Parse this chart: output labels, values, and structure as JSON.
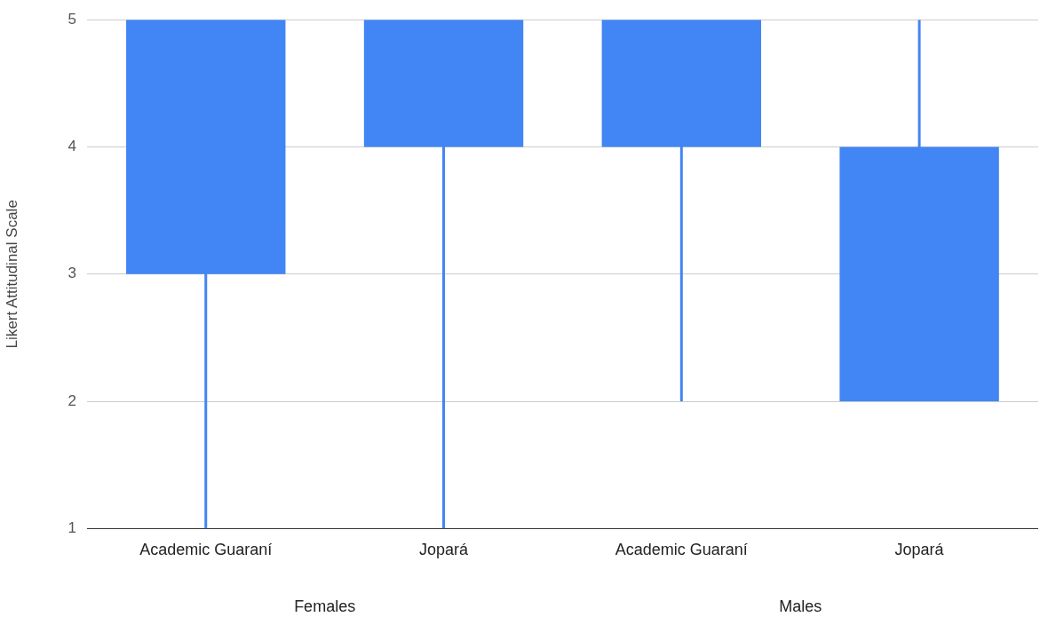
{
  "chart_data": {
    "type": "candlestick",
    "ylabel": "Likert Attitudinal Scale",
    "categories": [
      "Academic Guaraní",
      "Jopará",
      "Academic Guaraní",
      "Jopará"
    ],
    "ohlc": [
      [
        3,
        5,
        1,
        5
      ],
      [
        4,
        5,
        1,
        5
      ],
      [
        4,
        5,
        2,
        5
      ],
      [
        2,
        5,
        2,
        4
      ]
    ],
    "color": "#4285f4",
    "ylim": [
      1,
      5
    ],
    "yticks": [
      1,
      2,
      3,
      4,
      5
    ],
    "grid": "y",
    "legend": false,
    "annotations": [
      "Females",
      "Males"
    ]
  }
}
